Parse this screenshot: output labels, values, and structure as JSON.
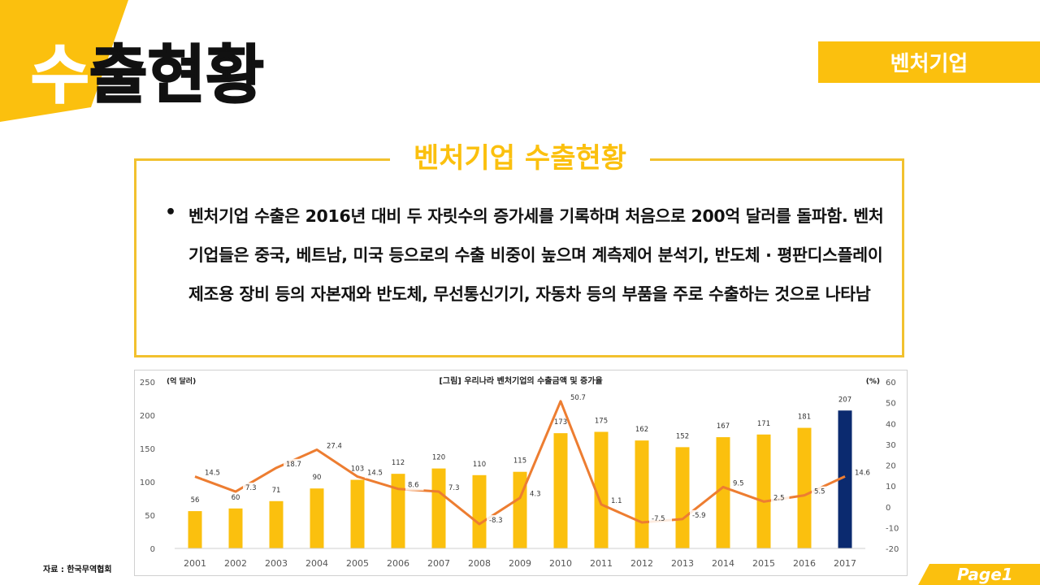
{
  "header": {
    "title_first": "수",
    "title_rest": "출현황",
    "badge": "벤처기업"
  },
  "box": {
    "title": "벤처기업 수출현황",
    "bullet": "•",
    "text": "벤처기업 수출은 2016년 대비 두 자릿수의 증가세를 기록하며 처음으로 200억 달러를 돌파함. 벤처기업들은 중국, 베트남, 미국 등으로의 수출 비중이 높으며 계측제어 분석기, 반도체 · 평판디스플레이 제조용 장비 등의 자본재와 반도체, 무선통신기기, 자동차 등의 부품을 주로 수출하는 것으로 나타남"
  },
  "footer": {
    "source": "자료 : 한국무역협회",
    "page": "Page1"
  },
  "colors": {
    "accent": "#FBC00E",
    "bar": "#FBC00E",
    "highlight_bar": "#0B2A6F",
    "line": "#ED7D31"
  },
  "chart_data": {
    "type": "bar",
    "title": "[그림] 우리나라 벤처기업의 수출금액 및 증가율",
    "left_unit": "(억 달러)",
    "right_unit": "(%)",
    "categories": [
      "2001",
      "2002",
      "2003",
      "2004",
      "2005",
      "2006",
      "2007",
      "2008",
      "2009",
      "2010",
      "2011",
      "2012",
      "2013",
      "2014",
      "2015",
      "2016",
      "2017"
    ],
    "series": [
      {
        "type": "bar",
        "axis": "left",
        "values": [
          56,
          60,
          71,
          90,
          103,
          112,
          120,
          110,
          115,
          173,
          175,
          162,
          152,
          167,
          171,
          181,
          207
        ]
      },
      {
        "type": "line",
        "axis": "right",
        "values": [
          14.5,
          7.3,
          18.7,
          27.4,
          14.5,
          8.6,
          7.3,
          -8.3,
          4.3,
          50.7,
          1.1,
          -7.5,
          -5.9,
          9.5,
          2.5,
          5.5,
          14.6
        ]
      }
    ],
    "ylim_left": [
      0,
      250
    ],
    "yticks_left": [
      "0",
      "50",
      "100",
      "150",
      "200",
      "250"
    ],
    "ylim_right": [
      -20,
      60
    ],
    "yticks_right": [
      "-20",
      "-10",
      "0",
      "10",
      "20",
      "30",
      "40",
      "50",
      "60"
    ],
    "highlight_category": "2017",
    "grid": false
  }
}
